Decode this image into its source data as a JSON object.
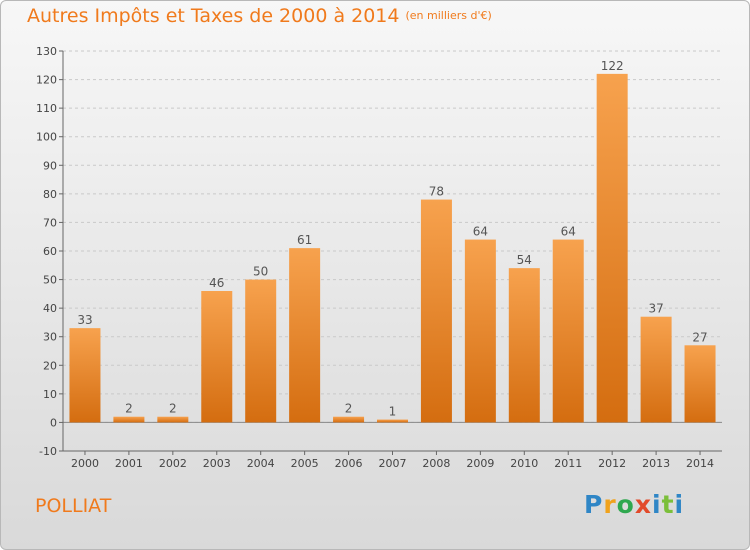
{
  "title": "Autres Impôts et Taxes de 2000 à 2014",
  "unit": "(en milliers d'€)",
  "commune": "POLLIAT",
  "logo": "Proxiti",
  "colors": {
    "bar_light": "#f7a24e",
    "bar_dark": "#d46d10",
    "title": "#f07a1c"
  },
  "chart_data": {
    "type": "bar",
    "title": "Autres Impôts et Taxes de 2000 à 2014",
    "subtitle": "(en milliers d'€)",
    "categories": [
      "2000",
      "2001",
      "2002",
      "2003",
      "2004",
      "2005",
      "2006",
      "2007",
      "2008",
      "2009",
      "2010",
      "2011",
      "2012",
      "2013",
      "2014"
    ],
    "values": [
      33,
      2,
      2,
      46,
      50,
      61,
      2,
      1,
      78,
      64,
      54,
      64,
      122,
      37,
      27
    ],
    "ylim": [
      -10,
      130
    ],
    "yticks": [
      -10,
      0,
      10,
      20,
      30,
      40,
      50,
      60,
      70,
      80,
      90,
      100,
      110,
      120,
      130
    ],
    "grid": true,
    "legend": "none"
  }
}
